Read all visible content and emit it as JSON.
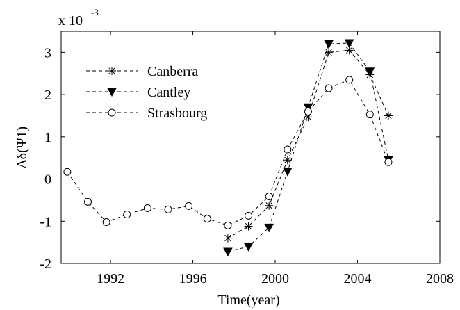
{
  "chart_data": {
    "type": "line",
    "y_label": "Δδ(Ψ1)",
    "x_label": "Time(year)",
    "y_multiplier": {
      "base": "x 10",
      "power": "-3"
    },
    "xlim": [
      1989.6,
      2008
    ],
    "ylim": [
      -2,
      3.5
    ],
    "xticks": [
      1992,
      1996,
      2000,
      2004,
      2008
    ],
    "yticks": [
      -2,
      -1,
      0,
      1,
      2,
      3
    ],
    "legend": "upper-left",
    "series": [
      {
        "name": "Canberra",
        "color": "#000000",
        "marker": "asterisk",
        "x": [
          1997.7,
          1998.7,
          1999.7,
          2000.6,
          2001.6,
          2002.6,
          2003.6,
          2004.6,
          2005.5
        ],
        "values": [
          -1.4,
          -1.12,
          -0.63,
          0.45,
          1.47,
          3.0,
          3.05,
          2.47,
          1.5
        ]
      },
      {
        "name": "Cantley",
        "color": "#000000",
        "marker": "triangle-down",
        "x": [
          1997.7,
          1998.7,
          1999.7,
          2000.6,
          2001.6,
          2002.6,
          2003.6,
          2004.6,
          2005.5
        ],
        "values": [
          -1.72,
          -1.6,
          -1.15,
          0.18,
          1.7,
          3.2,
          3.22,
          2.55,
          0.45
        ]
      },
      {
        "name": "Strasbourg",
        "color": "#000000",
        "marker": "circle",
        "x": [
          1989.9,
          1990.9,
          1991.8,
          1992.8,
          1993.8,
          1994.8,
          1995.8,
          1996.7,
          1997.7,
          1998.7,
          1999.7,
          2000.6,
          2001.6,
          2002.6,
          2003.6,
          2004.6,
          2005.5
        ],
        "values": [
          0.17,
          -0.54,
          -1.02,
          -0.84,
          -0.69,
          -0.72,
          -0.64,
          -0.94,
          -1.1,
          -0.87,
          -0.41,
          0.7,
          1.6,
          2.15,
          2.35,
          1.53,
          0.4
        ]
      }
    ]
  }
}
